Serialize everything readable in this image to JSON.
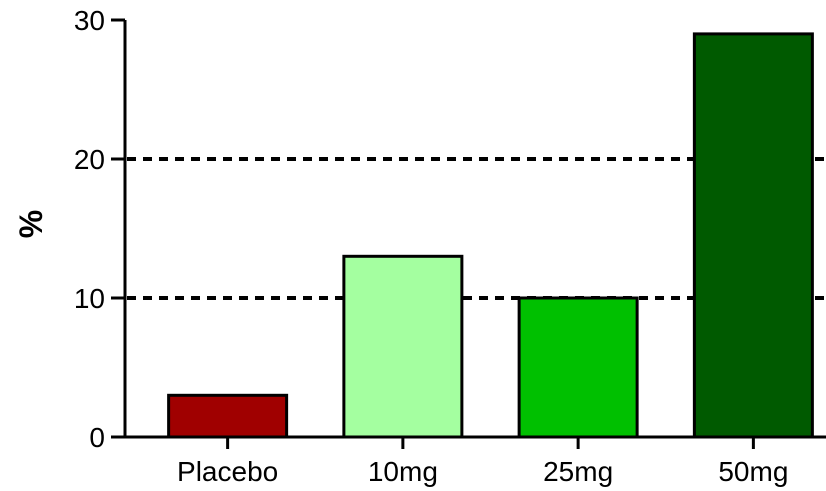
{
  "chart_data": {
    "type": "bar",
    "categories": [
      "Placebo",
      "10mg",
      "25mg",
      "50mg"
    ],
    "values": [
      3,
      13,
      10,
      29
    ],
    "colors": [
      "#a00000",
      "#a4ffa0",
      "#00c000",
      "#005a00"
    ],
    "title": "",
    "xlabel": "",
    "ylabel": "%",
    "ylim": [
      0,
      30
    ],
    "yticks": [
      0,
      10,
      20,
      30
    ],
    "reference_lines": [
      10,
      20
    ],
    "legend": "none",
    "grid": "dashed lines at 10 and 20"
  }
}
